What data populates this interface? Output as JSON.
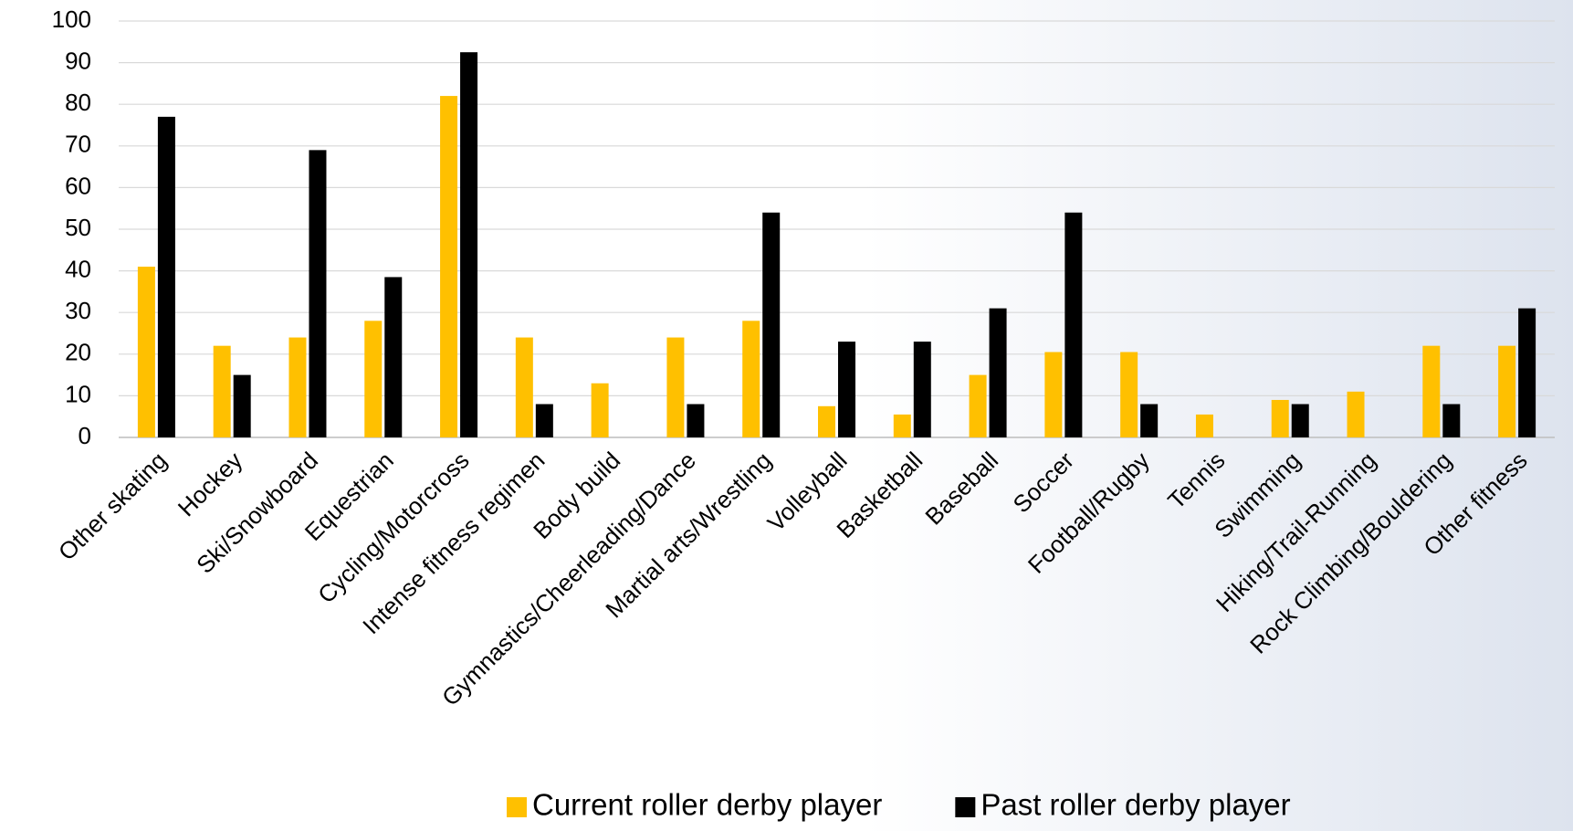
{
  "chart_data": {
    "type": "bar",
    "categories": [
      "Other skating",
      "Hockey",
      "Ski/Snowboard",
      "Equestrian",
      "Cycling/Motorcross",
      "Intense fitness regimen",
      "Body build",
      "Gymnastics/Cheerleading/Dance",
      "Martial arts/Wrestling",
      "Volleyball",
      "Basketball",
      "Baseball",
      "Soccer",
      "Football/Rugby",
      "Tennis",
      "Swimming",
      "Hiking/Trail-Running",
      "Rock Climbing/Bouldering",
      "Other fitness"
    ],
    "series": [
      {
        "name": "Current roller derby player",
        "color": "#ffc000",
        "values": [
          41,
          22,
          24,
          28,
          82,
          24,
          13,
          24,
          28,
          7.5,
          5.5,
          15,
          20.5,
          20.5,
          5.5,
          9,
          11,
          22,
          22
        ]
      },
      {
        "name": "Past roller derby player",
        "color": "#000000",
        "values": [
          77,
          15,
          69,
          38.5,
          92.5,
          8,
          0,
          8,
          54,
          23,
          23,
          31,
          54,
          8,
          0,
          8,
          0,
          8,
          31
        ]
      }
    ],
    "ylim": [
      0,
      100
    ],
    "yticks": [
      0,
      10,
      20,
      30,
      40,
      50,
      60,
      70,
      80,
      90,
      100
    ],
    "grid": true,
    "legend": "bottom"
  }
}
